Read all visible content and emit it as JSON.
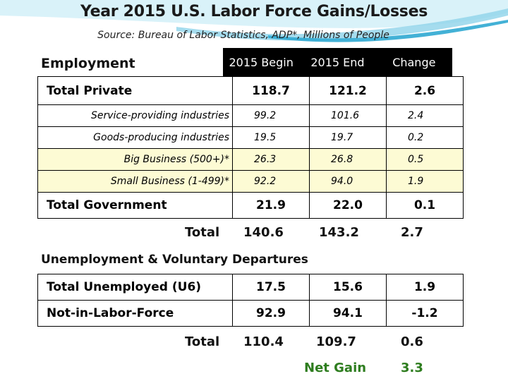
{
  "title": "Year 2015 U.S. Labor Force Gains/Losses",
  "subtitle": "Source: Bureau of Labor Statistics, ADP*, Millions of People",
  "employment": {
    "heading": "Employment",
    "columns": [
      "2015 Begin",
      "2015 End",
      "Change"
    ],
    "rows": [
      {
        "label": "Total Private",
        "begin": "118.7",
        "end": "121.2",
        "change": "2.6"
      },
      {
        "label": "Service-providing industries",
        "begin": "99.2",
        "end": "101.6",
        "change": "2.4"
      },
      {
        "label": "Goods-producing industries",
        "begin": "19.5",
        "end": "19.7",
        "change": "0.2"
      },
      {
        "label": "Big Business (500+)*",
        "begin": "26.3",
        "end": "26.8",
        "change": "0.5"
      },
      {
        "label": "Small Business (1-499)*",
        "begin": "92.2",
        "end": "94.0",
        "change": "1.9"
      },
      {
        "label": "Total Government",
        "begin": "21.9",
        "end": "22.0",
        "change": "0.1"
      }
    ],
    "total": {
      "label": "Total",
      "begin": "140.6",
      "end": "143.2",
      "change": "2.7"
    }
  },
  "unemployment": {
    "heading": "Unemployment & Voluntary Departures",
    "rows": [
      {
        "label": "Total Unemployed (U6)",
        "begin": "17.5",
        "end": "15.6",
        "change": "1.9"
      },
      {
        "label": "Not-in-Labor-Force",
        "begin": "92.9",
        "end": "94.1",
        "change": "-1.2"
      }
    ],
    "total": {
      "label": "Total",
      "begin": "110.4",
      "end": "109.7",
      "change": "0.6"
    }
  },
  "net_gain": {
    "label": "Net Gain",
    "value": "3.3"
  },
  "colors": {
    "highlight": "#fdfbd4",
    "net_gain": "#2e7d1f",
    "header": "#000000"
  }
}
